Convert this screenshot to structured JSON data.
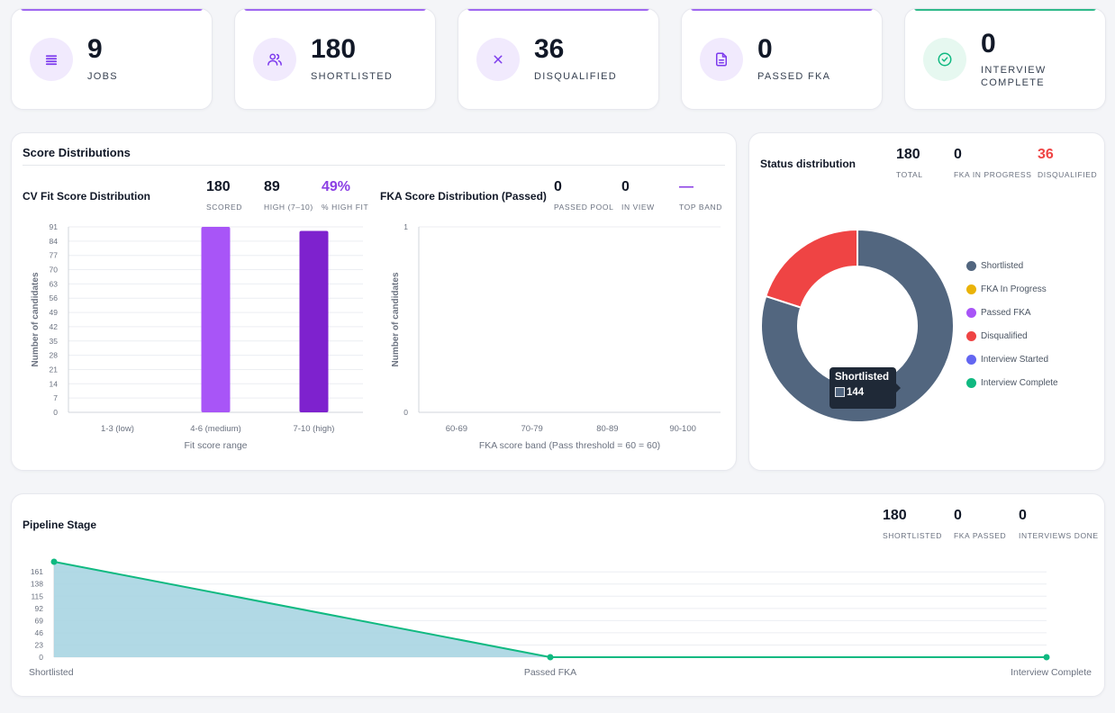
{
  "kpis": [
    {
      "value": "9",
      "label": "JOBS",
      "icon": "list-icon"
    },
    {
      "value": "180",
      "label": "SHORTLISTED",
      "icon": "users-icon"
    },
    {
      "value": "36",
      "label": "DISQUALIFIED",
      "icon": "x-icon"
    },
    {
      "value": "0",
      "label": "PASSED FKA",
      "icon": "document-icon"
    },
    {
      "value": "0",
      "label": "INTERVIEW COMPLETE",
      "icon": "check-circle-icon"
    }
  ],
  "colors": {
    "purple": "#8b5cf6",
    "green": "#10b981",
    "red": "#ef4444",
    "slate": "#52667f"
  },
  "score_distributions": {
    "title": "Score Distributions",
    "cv": {
      "title": "CV Fit Score Distribution",
      "stats": [
        {
          "value": "180",
          "label": "SCORED"
        },
        {
          "value": "89",
          "label": "HIGH (7–10)"
        },
        {
          "value": "49%",
          "label": "% HIGH FIT"
        }
      ]
    },
    "fka": {
      "title": "FKA Score Distribution (Passed)",
      "stats": [
        {
          "value": "0",
          "label": "PASSED POOL"
        },
        {
          "value": "0",
          "label": "IN VIEW"
        },
        {
          "value": "—",
          "label": "TOP BAND"
        }
      ]
    }
  },
  "status": {
    "title": "Status distribution",
    "stats": [
      {
        "value": "180",
        "label": "TOTAL"
      },
      {
        "value": "0",
        "label": "FKA IN PROGRESS"
      },
      {
        "value": "36",
        "label": "DISQUALIFIED"
      }
    ],
    "legend": [
      {
        "label": "Shortlisted",
        "color": "#52667f"
      },
      {
        "label": "FKA In Progress",
        "color": "#eab308"
      },
      {
        "label": "Passed FKA",
        "color": "#a855f7"
      },
      {
        "label": "Disqualified",
        "color": "#ef4444"
      },
      {
        "label": "Interview Started",
        "color": "#6366f1"
      },
      {
        "label": "Interview Complete",
        "color": "#10b981"
      }
    ],
    "tooltip": {
      "label": "Shortlisted",
      "value": "144"
    }
  },
  "pipeline": {
    "title": "Pipeline Stage",
    "stats": [
      {
        "value": "180",
        "label": "SHORTLISTED"
      },
      {
        "value": "0",
        "label": "FKA PASSED"
      },
      {
        "value": "0",
        "label": "INTERVIEWS DONE"
      }
    ]
  },
  "chart_data": [
    {
      "type": "bar",
      "title": "CV Fit Score Distribution",
      "categories": [
        "1-3 (low)",
        "4-6 (medium)",
        "7-10 (high)"
      ],
      "values": [
        0,
        91,
        89
      ],
      "colors": [
        "#a855f7",
        "#a855f7",
        "#7e22ce"
      ],
      "xlabel": "Fit score range",
      "ylabel": "Number of candidates",
      "yticks": [
        0,
        7,
        14,
        21,
        28,
        35,
        42,
        49,
        56,
        63,
        70,
        77,
        84,
        91
      ],
      "ylim": [
        0,
        91
      ],
      "grid": true
    },
    {
      "type": "bar",
      "title": "FKA Score Distribution (Passed)",
      "categories": [
        "60-69",
        "70-79",
        "80-89",
        "90-100"
      ],
      "values": [
        0,
        0,
        0,
        0
      ],
      "xlabel": "FKA score band (Pass threshold = 60 = 60)",
      "ylabel": "Number of candidates",
      "yticks": [
        0,
        1
      ],
      "ylim": [
        0,
        1
      ],
      "grid": true
    },
    {
      "type": "pie",
      "title": "Status distribution",
      "labels": [
        "Shortlisted",
        "Disqualified"
      ],
      "values": [
        144,
        36
      ],
      "colors": [
        "#52667f",
        "#ef4444"
      ]
    },
    {
      "type": "area",
      "title": "Pipeline Stage",
      "categories": [
        "Shortlisted",
        "Passed FKA",
        "Interview Complete"
      ],
      "values": [
        180,
        0,
        0
      ],
      "yticks": [
        0,
        23,
        46,
        69,
        92,
        115,
        138,
        161
      ],
      "ylim": [
        0,
        180
      ],
      "line_color": "#10b981",
      "fill_color": "#a8d5e2"
    }
  ]
}
